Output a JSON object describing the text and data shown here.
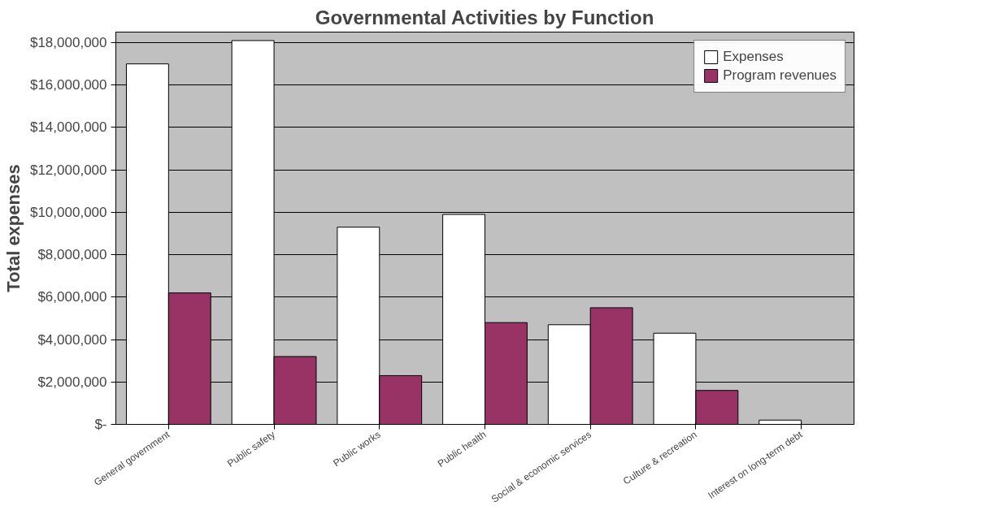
{
  "chart_data": {
    "type": "bar",
    "title": "Governmental Activities by Function",
    "ylabel": "Total expenses",
    "categories": [
      "General government",
      "Public safety",
      "Public works",
      "Public health",
      "Social & economic services",
      "Culture & recreation",
      "Interest on long-term debt"
    ],
    "series": [
      {
        "name": "Expenses",
        "color": "#ffffff",
        "values": [
          17000000,
          18100000,
          9300000,
          9900000,
          4700000,
          4300000,
          200000
        ]
      },
      {
        "name": "Program revenues",
        "color": "#993366",
        "values": [
          6200000,
          3200000,
          2300000,
          4800000,
          5500000,
          1600000,
          null
        ]
      }
    ],
    "ylim": [
      0,
      18500000
    ],
    "yticks": [
      {
        "value": 0,
        "label": "$-"
      },
      {
        "value": 2000000,
        "label": "$2,000,000"
      },
      {
        "value": 4000000,
        "label": "$4,000,000"
      },
      {
        "value": 6000000,
        "label": "$6,000,000"
      },
      {
        "value": 8000000,
        "label": "$8,000,000"
      },
      {
        "value": 10000000,
        "label": "$10,000,000"
      },
      {
        "value": 12000000,
        "label": "$12,000,000"
      },
      {
        "value": 14000000,
        "label": "$14,000,000"
      },
      {
        "value": 16000000,
        "label": "$16,000,000"
      },
      {
        "value": 18000000,
        "label": "$18,000,000"
      }
    ],
    "grid": "y",
    "legend": "top right"
  }
}
